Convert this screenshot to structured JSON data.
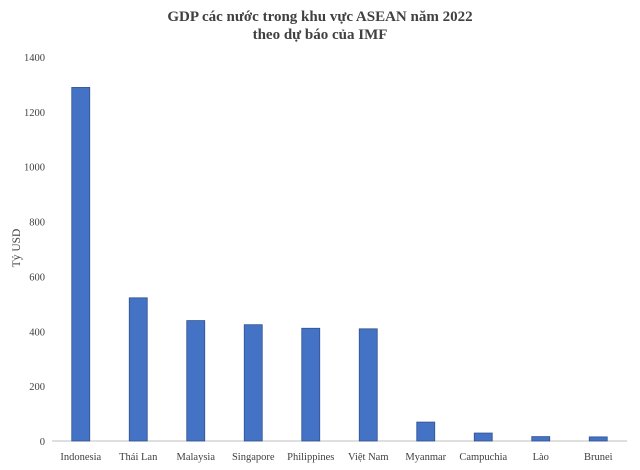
{
  "chart_data": {
    "type": "bar",
    "title": "GDP các nước trong khu vực ASEAN năm 2022",
    "subtitle": "theo dự báo của IMF",
    "xlabel": "",
    "ylabel": "Tỷ USD",
    "ylim": [
      0,
      1400
    ],
    "yticks": [
      0,
      200,
      400,
      600,
      800,
      1000,
      1200,
      1400
    ],
    "grid": false,
    "legend": "none",
    "bar_color": "#4472C4",
    "bar_edge_color": "#2F528F",
    "categories": [
      "Indonesia",
      "Thái Lan",
      "Malaysia",
      "Singapore",
      "Philippines",
      "Việt Nam",
      "Myanmar",
      "Campuchia",
      "Lào",
      "Brunei"
    ],
    "values": [
      1289,
      522,
      439,
      424,
      411,
      409,
      69,
      29,
      16,
      15
    ]
  }
}
